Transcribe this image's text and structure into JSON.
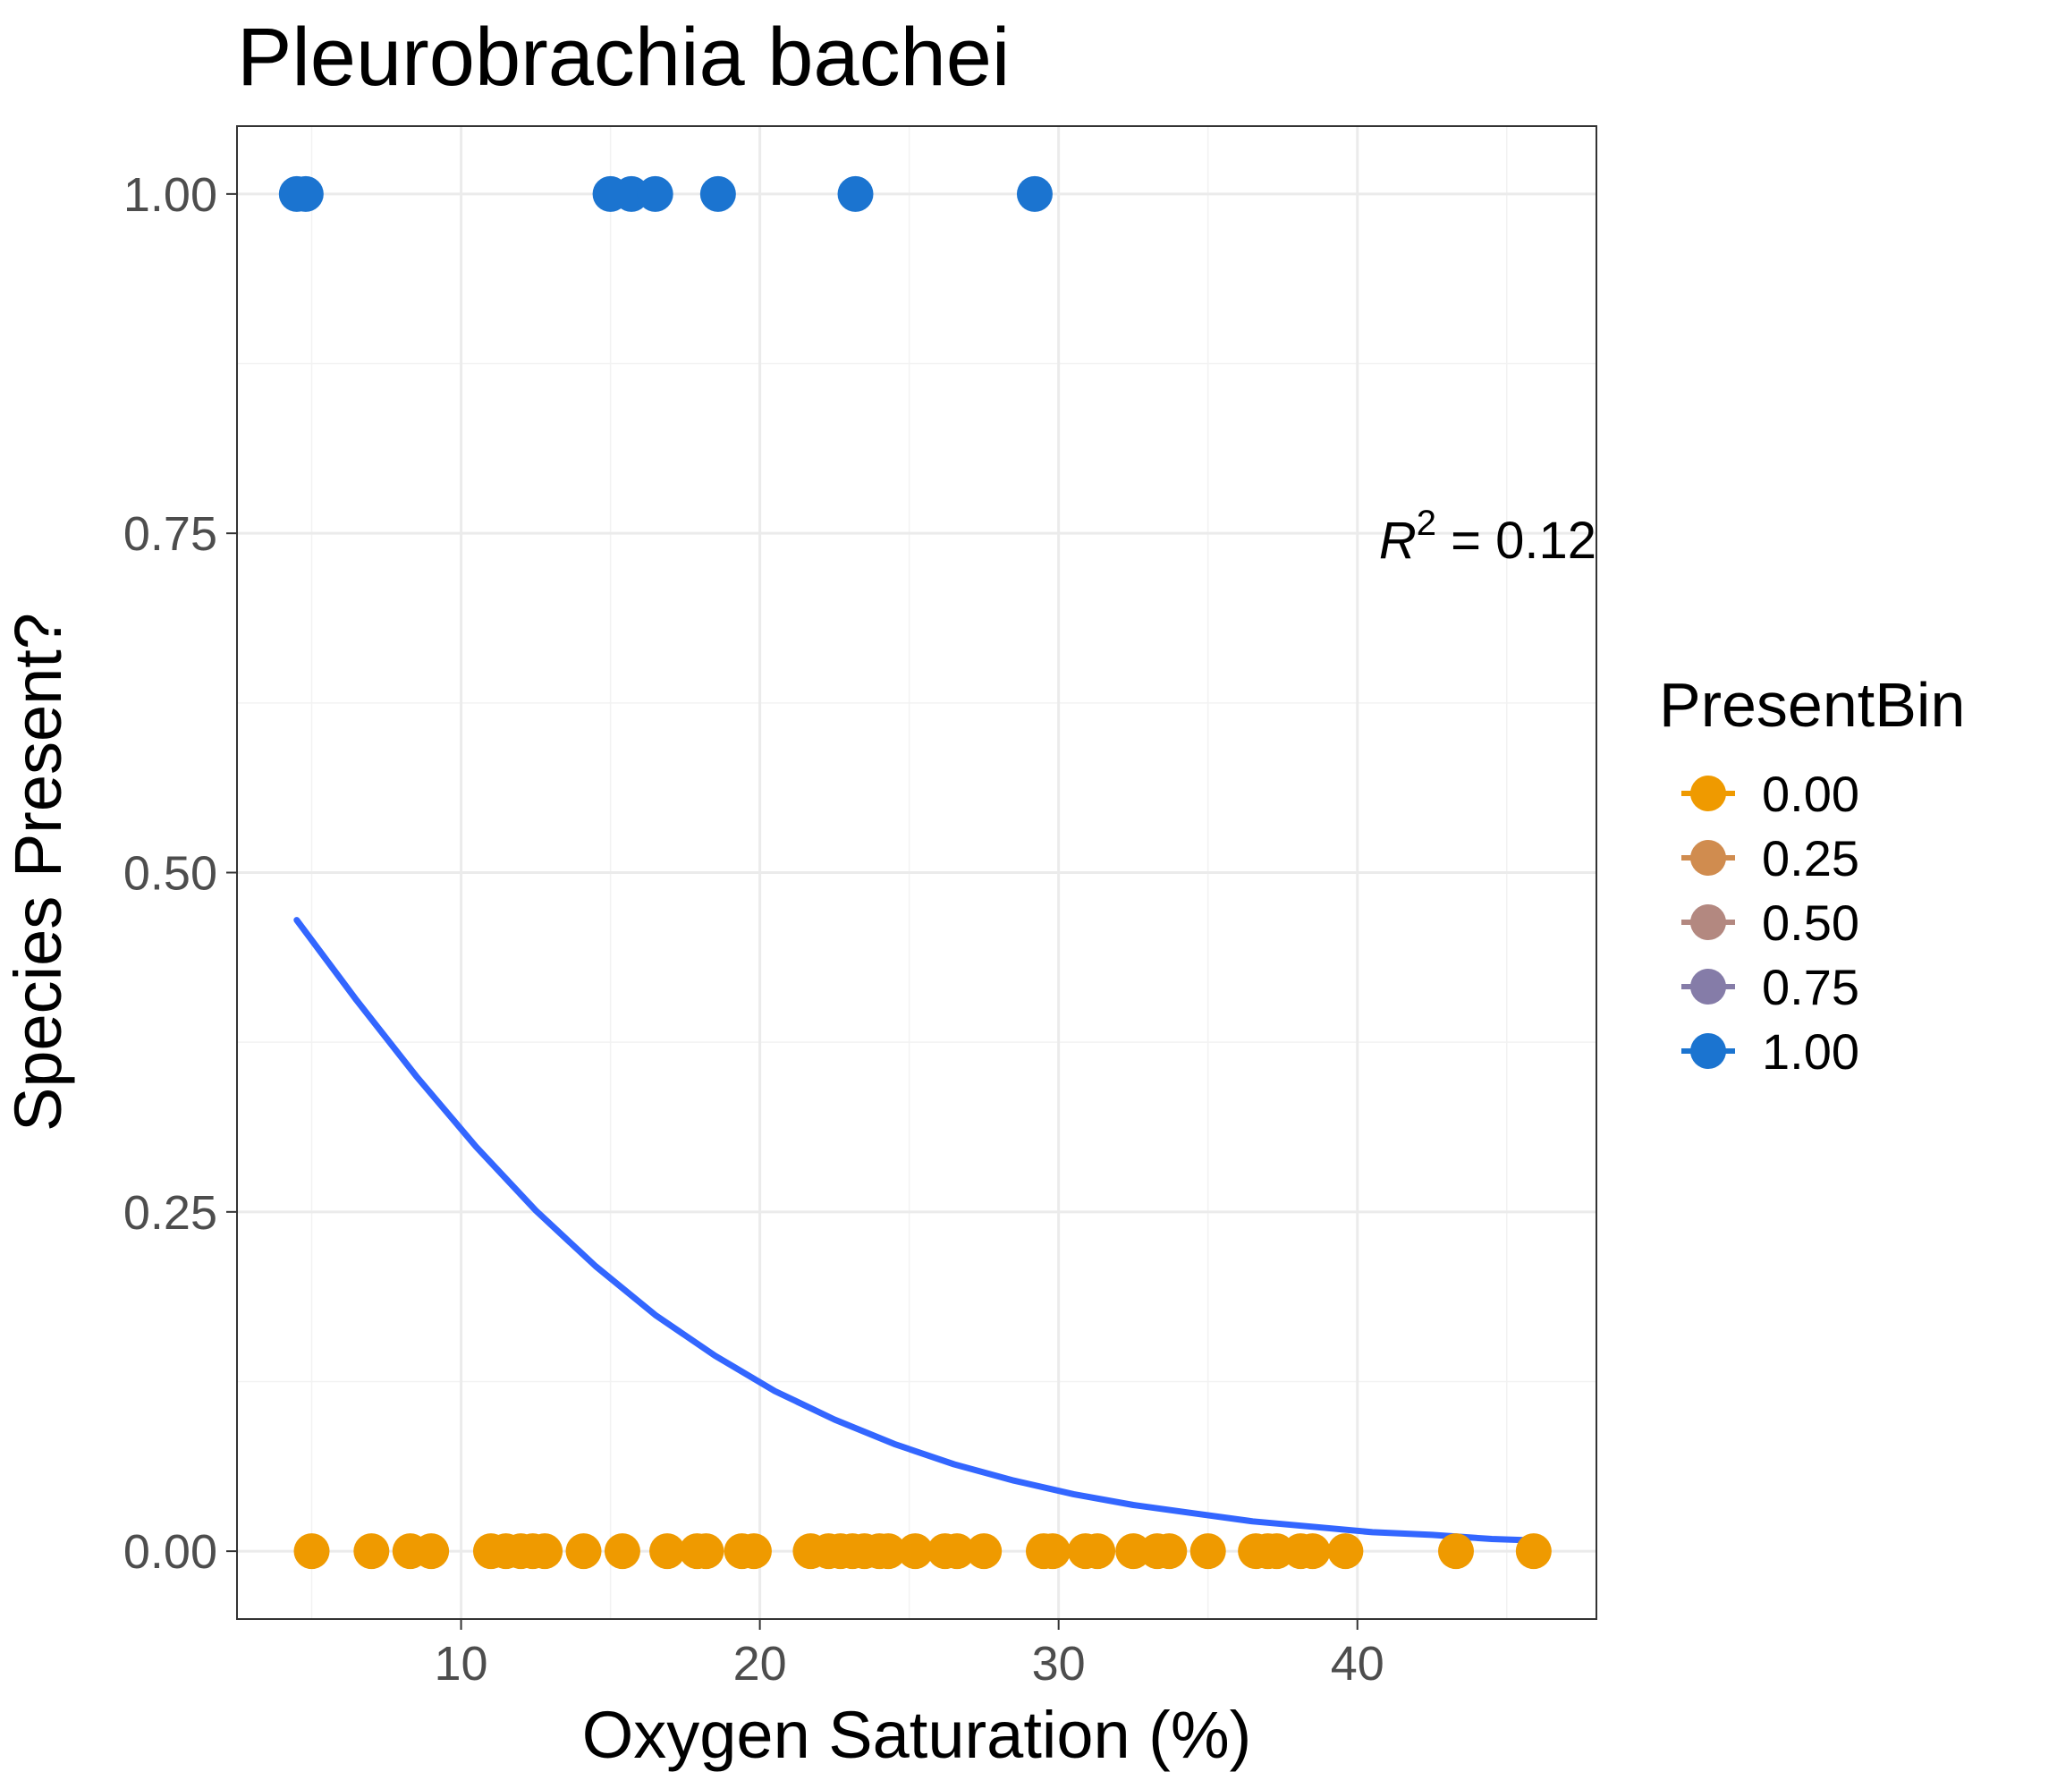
{
  "chart_data": {
    "type": "scatter",
    "title": "Pleurobrachia bachei",
    "xlabel": "Oxygen Saturation (%)",
    "ylabel": "Species Present?",
    "xlim": [
      2.5,
      48
    ],
    "ylim": [
      -0.05,
      1.05
    ],
    "x_ticks": [
      10,
      20,
      30,
      40
    ],
    "x_tick_labels": [
      "10",
      "20",
      "30",
      "40"
    ],
    "y_ticks": [
      0,
      0.25,
      0.5,
      0.75,
      1
    ],
    "y_tick_labels": [
      "0.00",
      "0.25",
      "0.50",
      "0.75",
      "1.00"
    ],
    "grid": true,
    "legend": {
      "title": "PresentBin",
      "placement": "right",
      "entries": [
        {
          "label": "0.00",
          "color": "#EF9A00"
        },
        {
          "label": "0.25",
          "color": "#D08C4F"
        },
        {
          "label": "0.50",
          "color": "#B38880"
        },
        {
          "label": "0.75",
          "color": "#857CA8"
        },
        {
          "label": "1.00",
          "color": "#1B74D0"
        }
      ]
    },
    "series": [
      {
        "color": "#1B74D0",
        "x": [
          4.5,
          4.8,
          15.0,
          15.7,
          16.5,
          18.6,
          23.2,
          29.2
        ],
        "y": [
          1,
          1,
          1,
          1,
          1,
          1,
          1,
          1
        ]
      },
      {
        "color": "#EF9A00",
        "x": [
          5.0,
          7.0,
          8.3,
          9.0,
          11.0,
          11.5,
          12.0,
          12.4,
          12.8,
          14.1,
          15.4,
          16.9,
          17.9,
          18.2,
          19.4,
          19.8,
          21.7,
          22.3,
          22.7,
          23.1,
          23.5,
          24.0,
          24.3,
          25.2,
          26.2,
          26.6,
          27.5,
          29.5,
          29.8,
          30.9,
          31.3,
          32.5,
          33.3,
          33.7,
          35.0,
          36.6,
          37.0,
          37.3,
          38.1,
          38.5,
          39.6,
          43.3,
          45.9
        ],
        "y": [
          0,
          0,
          0,
          0,
          0,
          0,
          0,
          0,
          0,
          0,
          0,
          0,
          0,
          0,
          0,
          0,
          0,
          0,
          0,
          0,
          0,
          0,
          0,
          0,
          0,
          0,
          0,
          0,
          0,
          0,
          0,
          0,
          0,
          0,
          0,
          0,
          0,
          0,
          0,
          0,
          0,
          0,
          0
        ]
      }
    ],
    "fit": {
      "type": "logistic",
      "color": "#3366FF",
      "x": [
        4.5,
        6.5,
        8.5,
        10.5,
        12.5,
        14.5,
        16.5,
        18.5,
        20.5,
        22.5,
        24.5,
        26.5,
        28.5,
        30.5,
        32.5,
        34.5,
        36.5,
        38.5,
        40.5,
        42.5,
        44.5,
        45.8
      ],
      "y": [
        0.465,
        0.406,
        0.35,
        0.298,
        0.251,
        0.21,
        0.174,
        0.144,
        0.118,
        0.097,
        0.079,
        0.064,
        0.052,
        0.042,
        0.034,
        0.028,
        0.022,
        0.018,
        0.014,
        0.012,
        0.009,
        0.008
      ]
    },
    "annotation": {
      "prefix": "R",
      "superscript": "2",
      "suffix": " = 0.12",
      "x": 48,
      "y": 0.745
    }
  }
}
